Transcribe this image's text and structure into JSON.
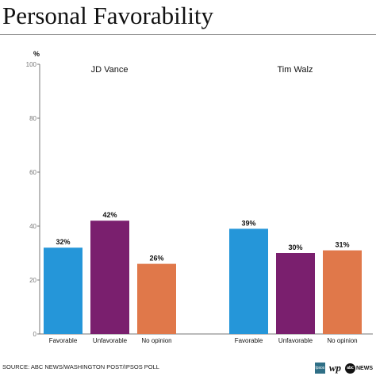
{
  "title": "Personal Favorability",
  "source": "SOURCE: ABC NEWS/WASHINGTON POST/IPSOS POLL",
  "logos": {
    "ipsos": "Ipsos",
    "wp": "wp",
    "abc": "abc",
    "news": "NEWS"
  },
  "colors": {
    "favorable": "#2596d9",
    "unfavorable": "#7a1f6e",
    "no_opinion": "#e0784a"
  },
  "chart_data": {
    "type": "bar",
    "ylabel": "%",
    "ylim": [
      0,
      100
    ],
    "yticks": [
      "0",
      "20",
      "40",
      "60",
      "80",
      "100"
    ],
    "groups": [
      {
        "name": "JD Vance",
        "bars": [
          {
            "category": "Favorable",
            "value": 32,
            "label": "32%"
          },
          {
            "category": "Unfavorable",
            "value": 42,
            "label": "42%"
          },
          {
            "category": "No opinion",
            "value": 26,
            "label": "26%"
          }
        ]
      },
      {
        "name": "Tim Walz",
        "bars": [
          {
            "category": "Favorable",
            "value": 39,
            "label": "39%"
          },
          {
            "category": "Unfavorable",
            "value": 30,
            "label": "30%"
          },
          {
            "category": "No opinion",
            "value": 31,
            "label": "31%"
          }
        ]
      }
    ]
  }
}
